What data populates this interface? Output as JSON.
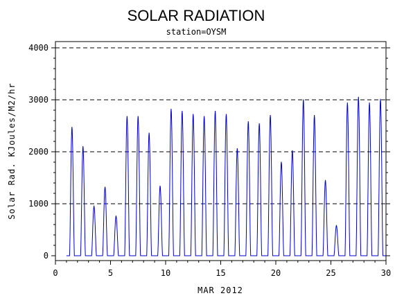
{
  "chart_data": {
    "type": "line",
    "title": "SOLAR RADIATION",
    "subtitle": "station=OYSM",
    "xlabel": "MAR 2012",
    "ylabel": "Solar Rad. KJoules/M2/hr",
    "xlim": [
      0,
      30
    ],
    "ylim": [
      0,
      4000
    ],
    "x_ticks": [
      0,
      5,
      10,
      15,
      20,
      25,
      30
    ],
    "y_ticks": [
      0,
      1000,
      2000,
      3000,
      4000
    ],
    "grid": "horizontal dashed",
    "series": [
      {
        "color": "#0000cc",
        "daily_peaks": [
          {
            "day": 1,
            "peak": 2470
          },
          {
            "day": 2,
            "peak": 2100
          },
          {
            "day": 3,
            "peak": 950
          },
          {
            "day": 4,
            "peak": 1320
          },
          {
            "day": 5,
            "peak": 760
          },
          {
            "day": 6,
            "peak": 2680
          },
          {
            "day": 7,
            "peak": 2680
          },
          {
            "day": 8,
            "peak": 2360
          },
          {
            "day": 9,
            "peak": 1340
          },
          {
            "day": 10,
            "peak": 2820
          },
          {
            "day": 11,
            "peak": 2780
          },
          {
            "day": 12,
            "peak": 2720
          },
          {
            "day": 13,
            "peak": 2680
          },
          {
            "day": 14,
            "peak": 2780
          },
          {
            "day": 15,
            "peak": 2720
          },
          {
            "day": 16,
            "peak": 2060
          },
          {
            "day": 17,
            "peak": 2580
          },
          {
            "day": 18,
            "peak": 2540
          },
          {
            "day": 19,
            "peak": 2700
          },
          {
            "day": 20,
            "peak": 1800
          },
          {
            "day": 21,
            "peak": 2020
          },
          {
            "day": 22,
            "peak": 3000
          },
          {
            "day": 23,
            "peak": 2700
          },
          {
            "day": 24,
            "peak": 1450
          },
          {
            "day": 25,
            "peak": 580
          },
          {
            "day": 26,
            "peak": 2940
          },
          {
            "day": 27,
            "peak": 3050
          },
          {
            "day": 28,
            "peak": 2940
          },
          {
            "day": 29,
            "peak": 3010
          }
        ]
      }
    ]
  }
}
